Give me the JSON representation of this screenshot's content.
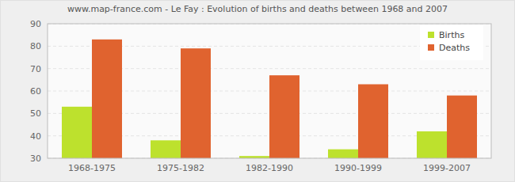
{
  "chart_data": {
    "type": "bar",
    "title": "www.map-france.com - Le Fay : Evolution of births and deaths between 1968 and 2007",
    "categories": [
      "1968-1975",
      "1975-1982",
      "1982-1990",
      "1990-1999",
      "1999-2007"
    ],
    "series": [
      {
        "name": "Births",
        "color": "#bde12d",
        "values": [
          53,
          38,
          31,
          34,
          42
        ]
      },
      {
        "name": "Deaths",
        "color": "#e0632f",
        "values": [
          83,
          79,
          67,
          63,
          58
        ]
      }
    ],
    "ylim": [
      30,
      90
    ],
    "yticks": [
      30,
      40,
      50,
      60,
      70,
      80,
      90
    ],
    "grid": true,
    "legend": "top-right"
  }
}
